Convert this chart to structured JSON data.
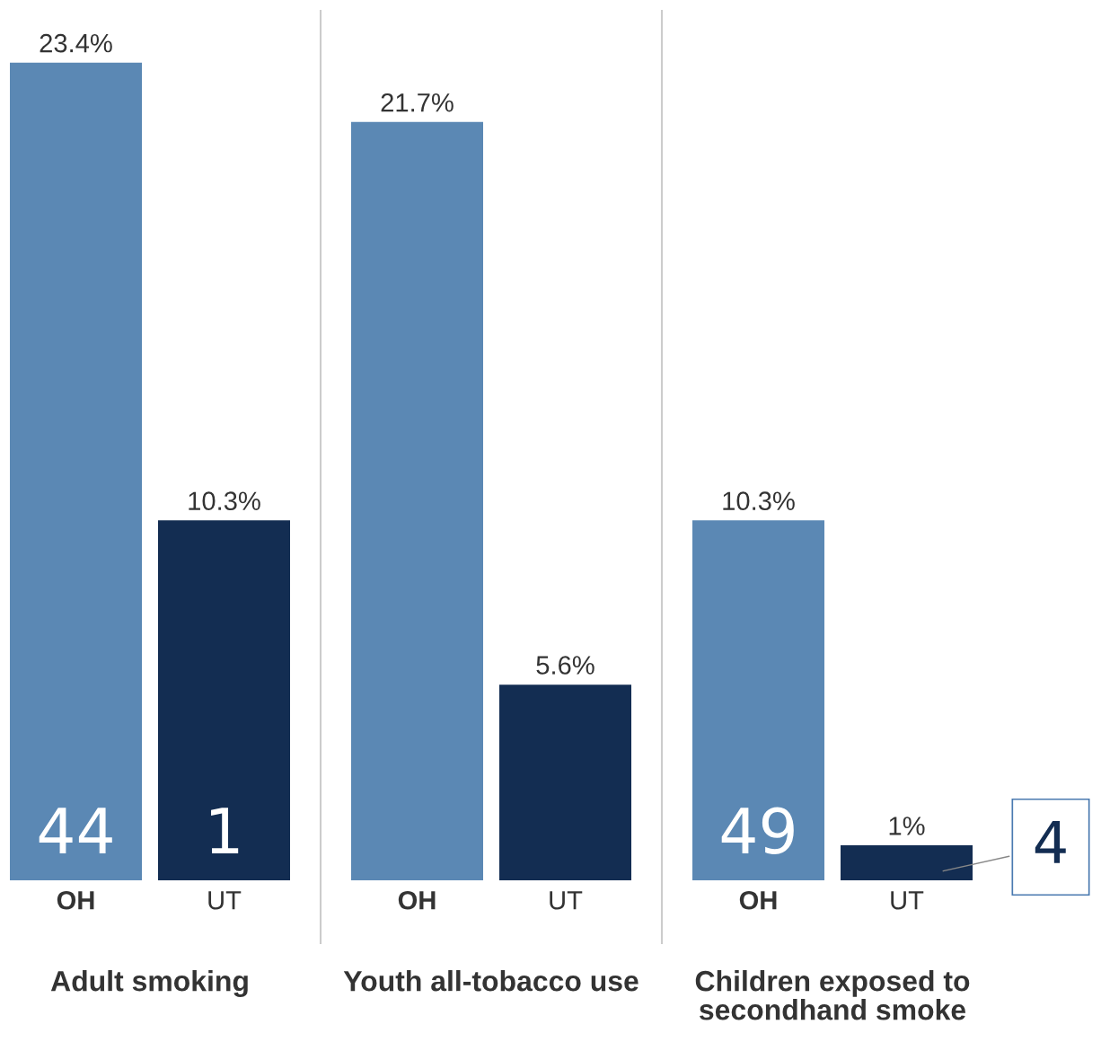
{
  "chart_data": {
    "type": "bar",
    "categories": [
      "Adult smoking",
      "Youth all-tobacco use",
      "Children exposed to secondhand smoke"
    ],
    "series": [
      {
        "name": "OH",
        "color": "#5b88b4",
        "values": [
          23.4,
          21.7,
          10.3
        ],
        "value_labels": [
          "23.4%",
          "21.7%",
          "10.3%"
        ]
      },
      {
        "name": "UT",
        "color": "#132d52",
        "values": [
          10.3,
          5.6,
          1
        ],
        "value_labels": [
          "10.3%",
          "5.6%",
          "1%"
        ]
      }
    ],
    "annotations": [
      "44",
      "1",
      "49",
      "4"
    ]
  }
}
